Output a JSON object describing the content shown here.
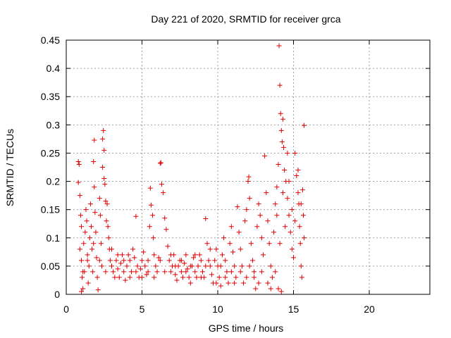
{
  "chart_data": {
    "type": "scatter",
    "title": "Day 221 of 2020, SRMTID for receiver grca",
    "xlabel": "GPS time / hours",
    "ylabel": "SRMTID / TECUs",
    "xlim": [
      0,
      24
    ],
    "ylim": [
      0,
      0.45
    ],
    "xticks": [
      0,
      5,
      10,
      15,
      20
    ],
    "xtick_labels": [
      "0",
      "5",
      "10",
      "15",
      "20"
    ],
    "yticks": [
      0,
      0.05,
      0.1,
      0.15,
      0.2,
      0.25,
      0.3,
      0.35,
      0.4,
      0.45
    ],
    "ytick_labels": [
      "0",
      "0.05",
      "0.1",
      "0.15",
      "0.2",
      "0.25",
      "0.3",
      "0.35",
      "0.4",
      "0.45"
    ],
    "grid": true,
    "marker": "+",
    "color": "#e00000",
    "series": [
      {
        "name": "SRMTID",
        "points": [
          [
            0.8,
            0.235
          ],
          [
            0.85,
            0.23
          ],
          [
            0.8,
            0.198
          ],
          [
            0.9,
            0.175
          ],
          [
            0.95,
            0.14
          ],
          [
            1.0,
            0.12
          ],
          [
            0.9,
            0.08
          ],
          [
            1.0,
            0.06
          ],
          [
            1.05,
            0.03
          ],
          [
            1.1,
            0.01
          ],
          [
            1.0,
            0.005
          ],
          [
            1.2,
            0.04
          ],
          [
            1.15,
            0.09
          ],
          [
            1.25,
            0.11
          ],
          [
            1.3,
            0.15
          ],
          [
            1.35,
            0.13
          ],
          [
            1.4,
            0.07
          ],
          [
            1.45,
            0.02
          ],
          [
            1.5,
            0.05
          ],
          [
            1.55,
            0.1
          ],
          [
            1.6,
            0.16
          ],
          [
            1.65,
            0.12
          ],
          [
            1.7,
            0.08
          ],
          [
            1.75,
            0.04
          ],
          [
            1.8,
            0.235
          ],
          [
            1.85,
            0.19
          ],
          [
            1.9,
            0.145
          ],
          [
            1.95,
            0.11
          ],
          [
            2.0,
            0.065
          ],
          [
            2.05,
            0.03
          ],
          [
            2.1,
            0.008
          ],
          [
            1.85,
            0.273
          ],
          [
            2.2,
            0.17
          ],
          [
            2.25,
            0.14
          ],
          [
            2.3,
            0.09
          ],
          [
            2.35,
            0.05
          ],
          [
            2.4,
            0.275
          ],
          [
            2.45,
            0.29
          ],
          [
            2.5,
            0.255
          ],
          [
            2.4,
            0.225
          ],
          [
            2.5,
            0.205
          ],
          [
            2.55,
            0.195
          ],
          [
            2.6,
            0.165
          ],
          [
            2.7,
            0.16
          ],
          [
            2.65,
            0.13
          ],
          [
            2.75,
            0.12
          ],
          [
            2.8,
            0.1
          ],
          [
            2.85,
            0.08
          ],
          [
            2.9,
            0.06
          ],
          [
            3.0,
            0.05
          ],
          [
            3.1,
            0.04
          ],
          [
            3.2,
            0.03
          ],
          [
            3.3,
            0.06
          ],
          [
            3.4,
            0.045
          ],
          [
            3.5,
            0.03
          ],
          [
            3.6,
            0.055
          ],
          [
            3.7,
            0.07
          ],
          [
            3.8,
            0.04
          ],
          [
            3.9,
            0.025
          ],
          [
            4.0,
            0.05
          ],
          [
            4.1,
            0.07
          ],
          [
            4.2,
            0.06
          ],
          [
            4.3,
            0.04
          ],
          [
            4.4,
            0.08
          ],
          [
            4.5,
            0.065
          ],
          [
            4.6,
            0.138
          ],
          [
            4.7,
            0.05
          ],
          [
            4.8,
            0.03
          ],
          [
            4.9,
            0.045
          ],
          [
            5.0,
            0.06
          ],
          [
            5.1,
            0.075
          ],
          [
            5.2,
            0.05
          ],
          [
            5.3,
            0.035
          ],
          [
            5.4,
            0.06
          ],
          [
            5.5,
            0.12
          ],
          [
            5.6,
            0.158
          ],
          [
            5.55,
            0.188
          ],
          [
            5.7,
            0.14
          ],
          [
            5.75,
            0.1
          ],
          [
            5.8,
            0.07
          ],
          [
            5.9,
            0.05
          ],
          [
            6.0,
            0.04
          ],
          [
            6.1,
            0.065
          ],
          [
            6.2,
            0.232
          ],
          [
            6.25,
            0.233
          ],
          [
            6.3,
            0.195
          ],
          [
            6.4,
            0.18
          ],
          [
            6.5,
            0.135
          ],
          [
            6.6,
            0.115
          ],
          [
            6.7,
            0.085
          ],
          [
            6.8,
            0.06
          ],
          [
            6.9,
            0.04
          ],
          [
            7.0,
            0.05
          ],
          [
            7.1,
            0.07
          ],
          [
            7.2,
            0.035
          ],
          [
            7.3,
            0.025
          ],
          [
            7.4,
            0.05
          ],
          [
            7.5,
            0.06
          ],
          [
            7.6,
            0.04
          ],
          [
            7.7,
            0.03
          ],
          [
            7.8,
            0.055
          ],
          [
            7.9,
            0.07
          ],
          [
            8.0,
            0.045
          ],
          [
            8.1,
            0.03
          ],
          [
            8.2,
            0.02
          ],
          [
            8.3,
            0.05
          ],
          [
            8.4,
            0.065
          ],
          [
            8.5,
            0.04
          ],
          [
            8.6,
            0.03
          ],
          [
            8.7,
            0.05
          ],
          [
            8.8,
            0.07
          ],
          [
            8.9,
            0.06
          ],
          [
            9.0,
            0.04
          ],
          [
            9.1,
            0.03
          ],
          [
            9.2,
            0.134
          ],
          [
            9.3,
            0.09
          ],
          [
            9.4,
            0.06
          ],
          [
            9.5,
            0.05
          ],
          [
            9.6,
            0.035
          ],
          [
            9.7,
            0.02
          ],
          [
            9.8,
            0.06
          ],
          [
            9.9,
            0.08
          ],
          [
            10.0,
            0.05
          ],
          [
            10.1,
            0.03
          ],
          [
            10.2,
            0.015
          ],
          [
            10.3,
            0.07
          ],
          [
            10.4,
            0.1
          ],
          [
            10.5,
            0.06
          ],
          [
            10.6,
            0.04
          ],
          [
            10.7,
            0.02
          ],
          [
            10.8,
            0.09
          ],
          [
            10.9,
            0.12
          ],
          [
            11.0,
            0.075
          ],
          [
            11.1,
            0.05
          ],
          [
            11.2,
            0.03
          ],
          [
            11.3,
            0.155
          ],
          [
            11.4,
            0.11
          ],
          [
            11.5,
            0.08
          ],
          [
            11.6,
            0.05
          ],
          [
            11.7,
            0.02
          ],
          [
            11.8,
            0.13
          ],
          [
            11.9,
            0.15
          ],
          [
            12.0,
            0.2
          ],
          [
            12.05,
            0.208
          ],
          [
            12.1,
            0.17
          ],
          [
            12.2,
            0.09
          ],
          [
            12.3,
            0.06
          ],
          [
            12.4,
            0.03
          ],
          [
            12.5,
            0.01
          ],
          [
            12.6,
            0.12
          ],
          [
            12.7,
            0.16
          ],
          [
            12.8,
            0.14
          ],
          [
            12.9,
            0.1
          ],
          [
            13.0,
            0.07
          ],
          [
            13.1,
            0.245
          ],
          [
            13.2,
            0.18
          ],
          [
            13.3,
            0.13
          ],
          [
            13.4,
            0.09
          ],
          [
            13.5,
            0.05
          ],
          [
            13.6,
            0.03
          ],
          [
            13.7,
            0.11
          ],
          [
            13.8,
            0.16
          ],
          [
            13.9,
            0.19
          ],
          [
            14.0,
            0.23
          ],
          [
            14.05,
            0.44
          ],
          [
            14.1,
            0.37
          ],
          [
            14.15,
            0.32
          ],
          [
            14.2,
            0.29
          ],
          [
            14.25,
            0.27
          ],
          [
            14.3,
            0.31
          ],
          [
            14.35,
            0.26
          ],
          [
            14.4,
            0.22
          ],
          [
            14.5,
            0.2
          ],
          [
            14.6,
            0.17
          ],
          [
            14.7,
            0.14
          ],
          [
            14.8,
            0.11
          ],
          [
            14.9,
            0.08
          ],
          [
            15.0,
            0.065
          ],
          [
            15.1,
            0.25
          ],
          [
            15.2,
            0.21
          ],
          [
            15.3,
            0.18
          ],
          [
            15.35,
            0.16
          ],
          [
            15.4,
            0.12
          ],
          [
            15.45,
            0.09
          ],
          [
            15.5,
            0.05
          ],
          [
            15.55,
            0.03
          ],
          [
            15.6,
            0.185
          ],
          [
            15.65,
            0.14
          ],
          [
            15.7,
            0.299
          ],
          [
            15.7,
            0.1
          ],
          [
            14.2,
            0.005
          ],
          [
            14.0,
            0.01
          ],
          [
            13.8,
            0.04
          ],
          [
            13.5,
            0.01
          ],
          [
            13.3,
            0.02
          ],
          [
            12.9,
            0.04
          ],
          [
            12.7,
            0.02
          ],
          [
            12.4,
            0.04
          ],
          [
            12.1,
            0.05
          ],
          [
            11.9,
            0.03
          ],
          [
            11.5,
            0.04
          ],
          [
            11.1,
            0.02
          ],
          [
            10.9,
            0.04
          ],
          [
            10.5,
            0.03
          ],
          [
            10.2,
            0.05
          ],
          [
            9.9,
            0.02
          ],
          [
            9.5,
            0.08
          ],
          [
            9.2,
            0.05
          ],
          [
            8.9,
            0.03
          ],
          [
            8.5,
            0.07
          ],
          [
            8.2,
            0.05
          ],
          [
            7.9,
            0.04
          ],
          [
            7.6,
            0.06
          ],
          [
            7.2,
            0.05
          ],
          [
            6.9,
            0.07
          ],
          [
            6.5,
            0.04
          ],
          [
            6.2,
            0.06
          ],
          [
            5.8,
            0.03
          ],
          [
            5.4,
            0.04
          ],
          [
            5.0,
            0.03
          ],
          [
            4.6,
            0.04
          ],
          [
            4.2,
            0.03
          ],
          [
            3.8,
            0.06
          ],
          [
            3.4,
            0.07
          ],
          [
            3.0,
            0.08
          ],
          [
            2.6,
            0.04
          ],
          [
            2.2,
            0.06
          ],
          [
            1.8,
            0.09
          ],
          [
            1.4,
            0.06
          ],
          [
            1.1,
            0.04
          ],
          [
            14.7,
            0.2
          ],
          [
            14.9,
            0.15
          ],
          [
            15.1,
            0.13
          ],
          [
            15.3,
            0.22
          ],
          [
            15.5,
            0.16
          ],
          [
            14.6,
            0.25
          ],
          [
            14.3,
            0.18
          ],
          [
            14.45,
            0.12
          ],
          [
            13.9,
            0.14
          ],
          [
            14.1,
            0.09
          ]
        ]
      }
    ]
  }
}
